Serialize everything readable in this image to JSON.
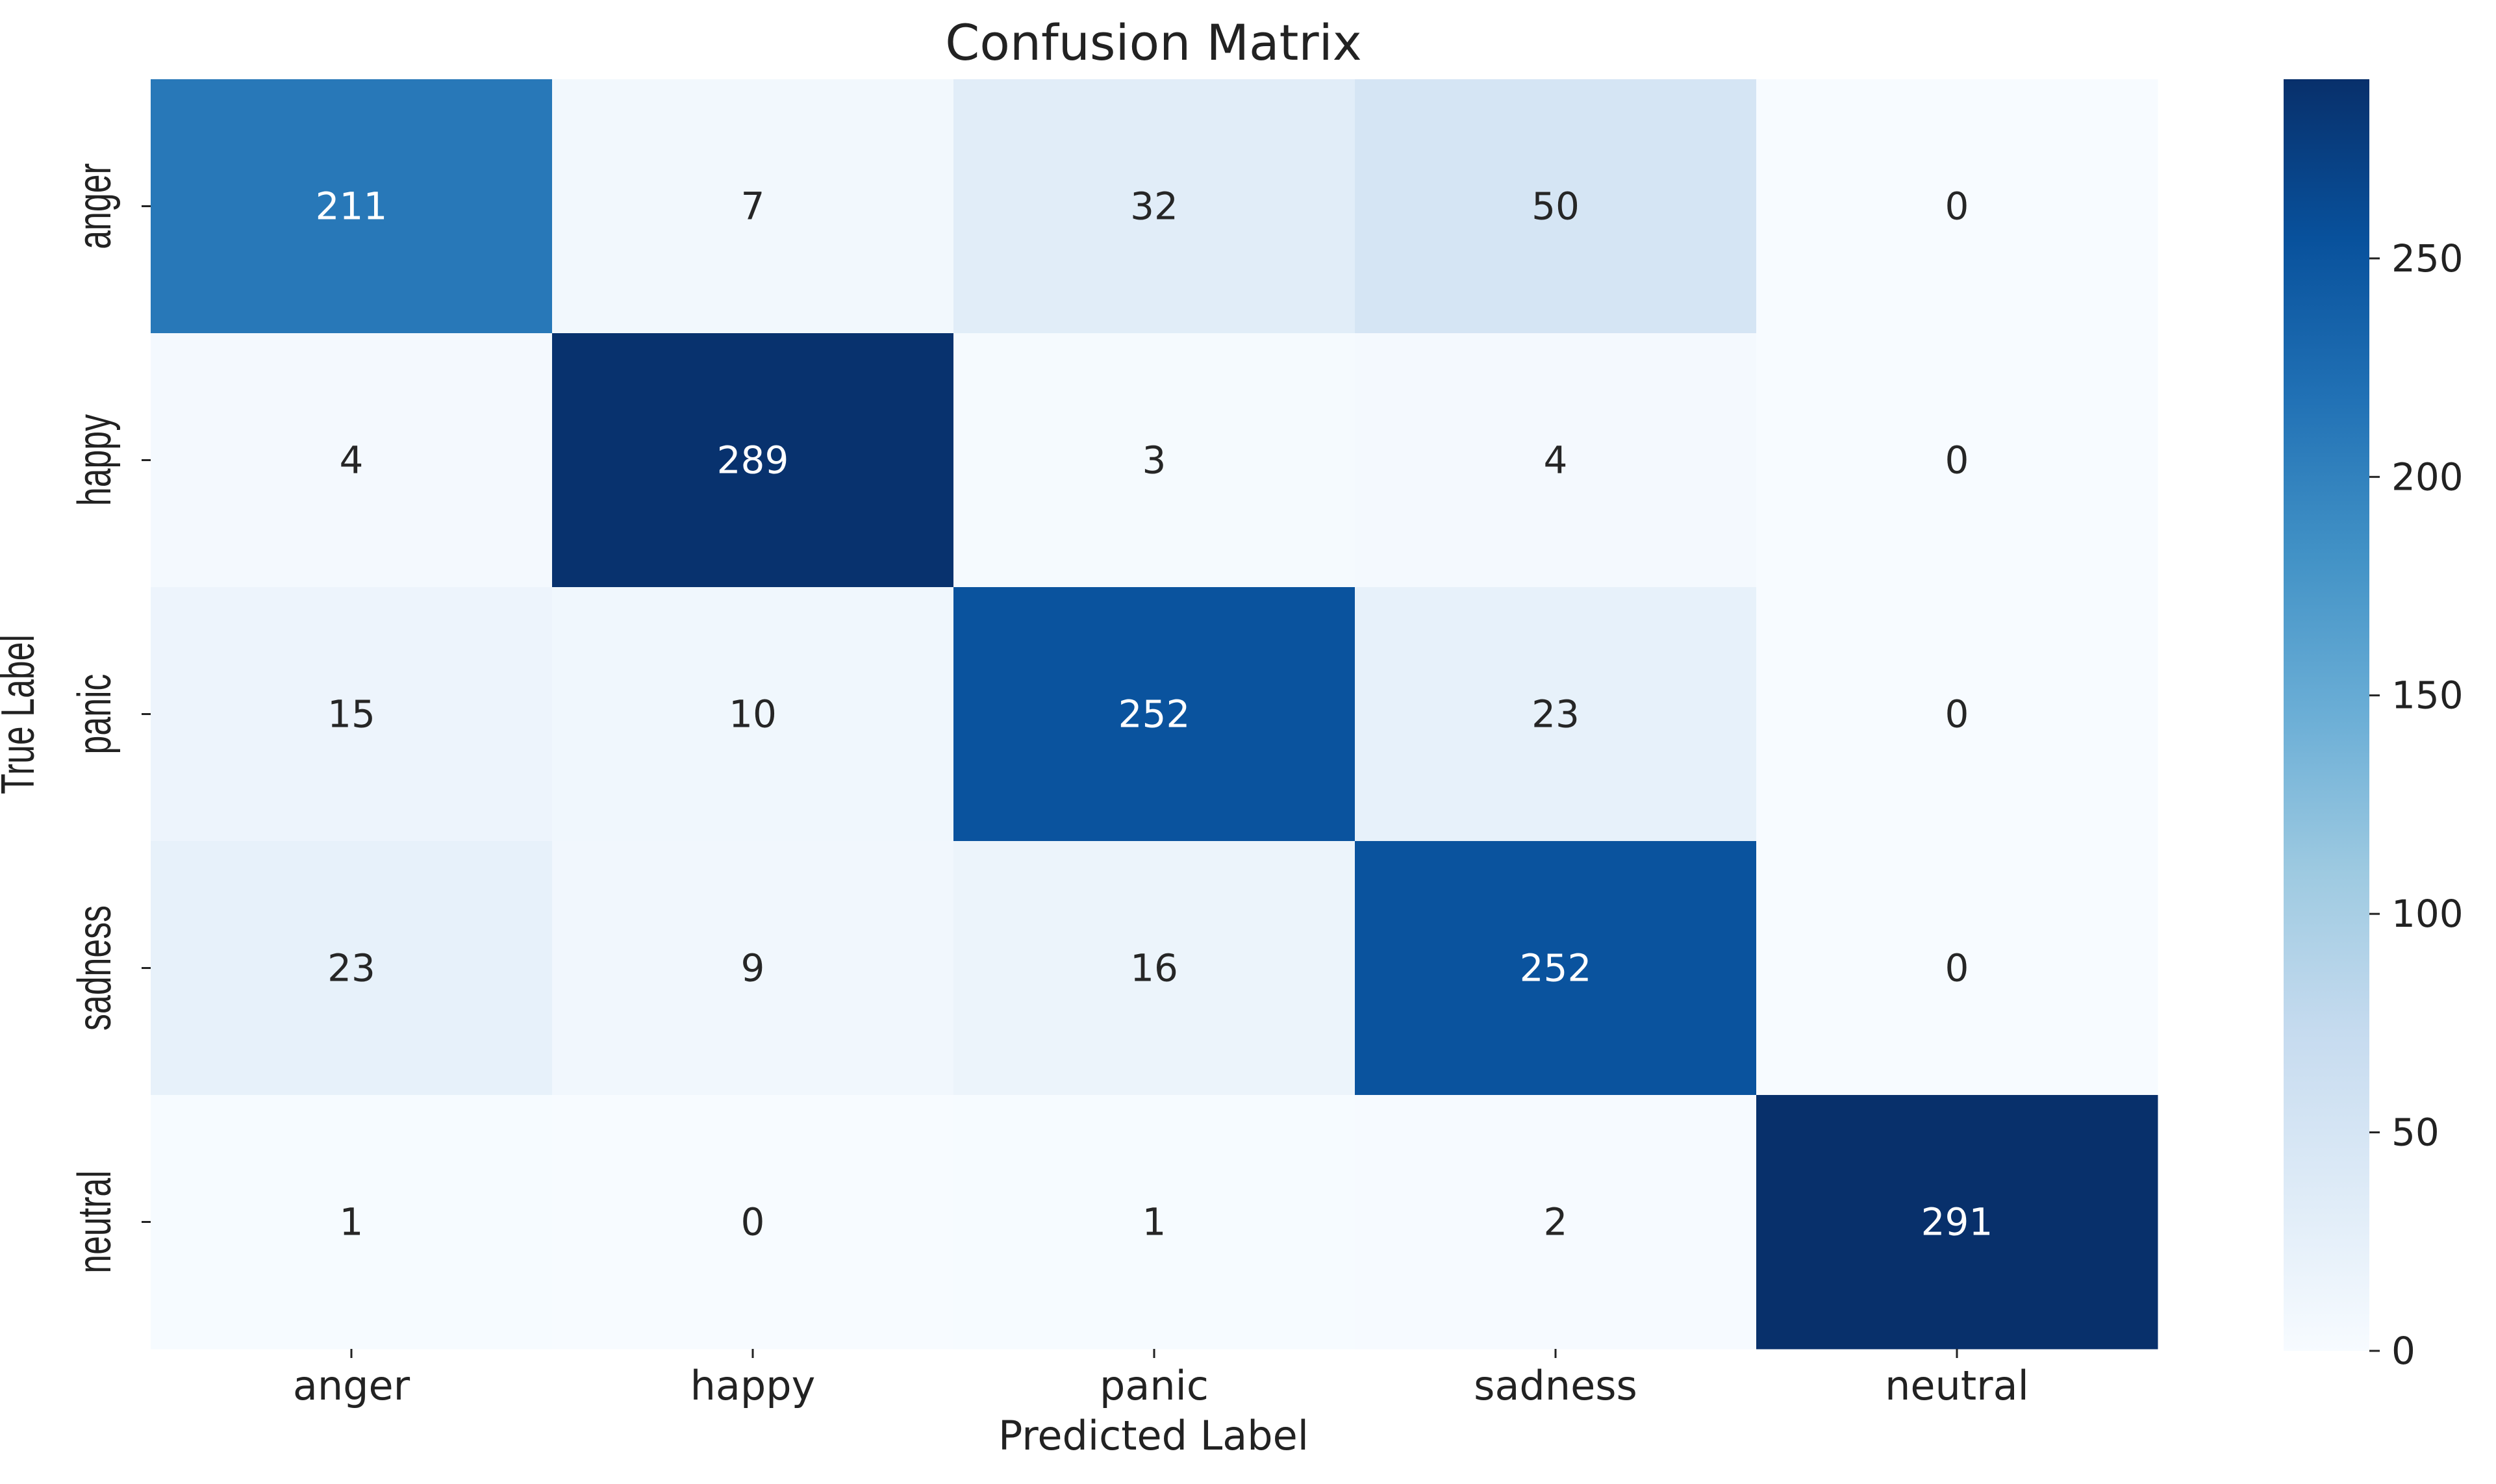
{
  "chart_data": {
    "type": "heatmap",
    "title": "Confusion Matrix",
    "xlabel": "Predicted Label",
    "ylabel": "True Label",
    "x_categories": [
      "anger",
      "happy",
      "panic",
      "sadness",
      "neutral"
    ],
    "y_categories": [
      "anger",
      "happy",
      "panic",
      "sadness",
      "neutral"
    ],
    "values": [
      [
        211,
        7,
        32,
        50,
        0
      ],
      [
        4,
        289,
        3,
        4,
        0
      ],
      [
        15,
        10,
        252,
        23,
        0
      ],
      [
        23,
        9,
        16,
        252,
        0
      ],
      [
        1,
        0,
        1,
        2,
        291
      ]
    ],
    "colormap": "Blues",
    "colorbar": {
      "range": [
        0,
        291
      ],
      "ticks": [
        0,
        50,
        100,
        150,
        200,
        250
      ],
      "tick_labels": [
        "0",
        "50",
        "100",
        "150",
        "200",
        "250"
      ]
    }
  }
}
